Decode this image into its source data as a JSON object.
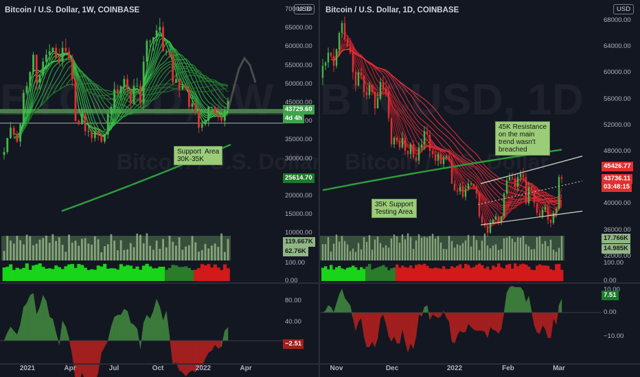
{
  "left": {
    "title": "Bitcoin / U.S. Dollar, 1W, COINBASE",
    "currency": "USD",
    "watermark_big": "BTCUSD, 1W",
    "watermark_small": "Bitcoin / U.S. Dollar",
    "price_ticks": [
      "70000.00",
      "65000.00",
      "60000.00",
      "55000.00",
      "50000.00",
      "45000.00",
      "40000.00",
      "35000.00",
      "30000.00",
      "25000.00",
      "20000.00",
      "15000.00",
      "10000.00"
    ],
    "price_labels": {
      "current": "43729.60",
      "countdown": "4d 4h",
      "ma": "25614.70"
    },
    "volume_labels": {
      "v1": "119.667K",
      "v2": "62.76K"
    },
    "strength_ticks": [
      "100.00",
      "0.00"
    ],
    "osc_ticks": [
      "80.00",
      "40.00"
    ],
    "osc_value": "−2.51",
    "x_ticks": [
      "2021",
      "Apr",
      "Jul",
      "Oct",
      "2022",
      "Apr"
    ],
    "annotation": "Support  Area\n30K-35K"
  },
  "right": {
    "title": "Bitcoin / U.S. Dollar, 1D, COINBASE",
    "currency": "USD",
    "watermark_big": "BTCUSD, 1D",
    "watermark_small": "Bitcoin / U.S. Dollar",
    "price_ticks": [
      "68000.00",
      "64000.00",
      "60000.00",
      "56000.00",
      "52000.00",
      "48000.00",
      "44000.00",
      "40000.00",
      "36000.00",
      "32000.00"
    ],
    "price_labels": {
      "resistance": "45426.77",
      "current": "43736.11",
      "countdown": "03:48:15"
    },
    "volume_labels": {
      "v1": "17.766K",
      "v2": "14.985K"
    },
    "strength_ticks": [
      "100.00",
      "0.00"
    ],
    "osc_ticks": [
      "10.00",
      "0.00",
      "−10.00"
    ],
    "osc_value": "7.51",
    "x_ticks": [
      "Nov",
      "Dec",
      "2022",
      "Feb",
      "Mar"
    ],
    "annotation_resistance": "45K Resistance\non the main\ntrend wasn't\nbreached",
    "annotation_support": "35K Support\nTesting Area"
  },
  "chart_data": [
    {
      "type": "candlestick",
      "title": "Bitcoin / U.S. Dollar, 1W, COINBASE",
      "x_ticks": [
        "2021",
        "Apr",
        "Jul",
        "Oct",
        "2022",
        "Apr"
      ],
      "ylim": [
        10000,
        70000
      ],
      "approx_weekly_close": [
        29000,
        33000,
        36000,
        34000,
        32000,
        37000,
        46000,
        48000,
        52000,
        57000,
        49000,
        51000,
        55000,
        57000,
        58000,
        59000,
        56000,
        55000,
        59000,
        58000,
        56000,
        50000,
        38000,
        37000,
        40000,
        35000,
        35000,
        33000,
        35000,
        34000,
        32000,
        34000,
        40000,
        42000,
        47000,
        46000,
        48000,
        50000,
        47000,
        43000,
        48000,
        48000,
        43000,
        55000,
        61000,
        61000,
        62000,
        64000,
        65000,
        58000,
        58000,
        57000,
        49000,
        50000,
        47000,
        48000,
        47000,
        42000,
        43000,
        41000,
        36000,
        37000,
        38000,
        42000,
        42000,
        40000,
        39000,
        38000,
        41000,
        43729
      ]
    },
    {
      "type": "candlestick",
      "title": "Bitcoin / U.S. Dollar, 1D, COINBASE",
      "x_ticks": [
        "Nov",
        "Dec",
        "2022",
        "Feb",
        "Mar"
      ],
      "ylim": [
        32000,
        68000
      ],
      "resistance": 45426.77,
      "last": 43736.11,
      "approx_daily_close": [
        61000,
        61500,
        63000,
        62500,
        61000,
        63500,
        66000,
        67500,
        65000,
        64000,
        63000,
        60000,
        58000,
        60000,
        59500,
        57000,
        56500,
        58000,
        57000,
        54500,
        56000,
        58500,
        57500,
        57000,
        53000,
        49000,
        50000,
        49500,
        48500,
        50000,
        48000,
        47500,
        49000,
        47000,
        46500,
        48500,
        49000,
        51000,
        50500,
        48000,
        47500,
        46500,
        47500,
        46000,
        47000,
        47200,
        46500,
        43000,
        42000,
        41800,
        42500,
        41000,
        42200,
        43000,
        43000,
        42500,
        41500,
        38000,
        37000,
        36500,
        35500,
        37000,
        37500,
        38000,
        37200,
        38000,
        41500,
        43500,
        44000,
        43800,
        42500,
        44000,
        44500,
        44000,
        40000,
        42500,
        42000,
        40000,
        38500,
        38000,
        39000,
        39500,
        37500,
        37000,
        38500,
        39200,
        44000,
        43736
      ]
    }
  ]
}
